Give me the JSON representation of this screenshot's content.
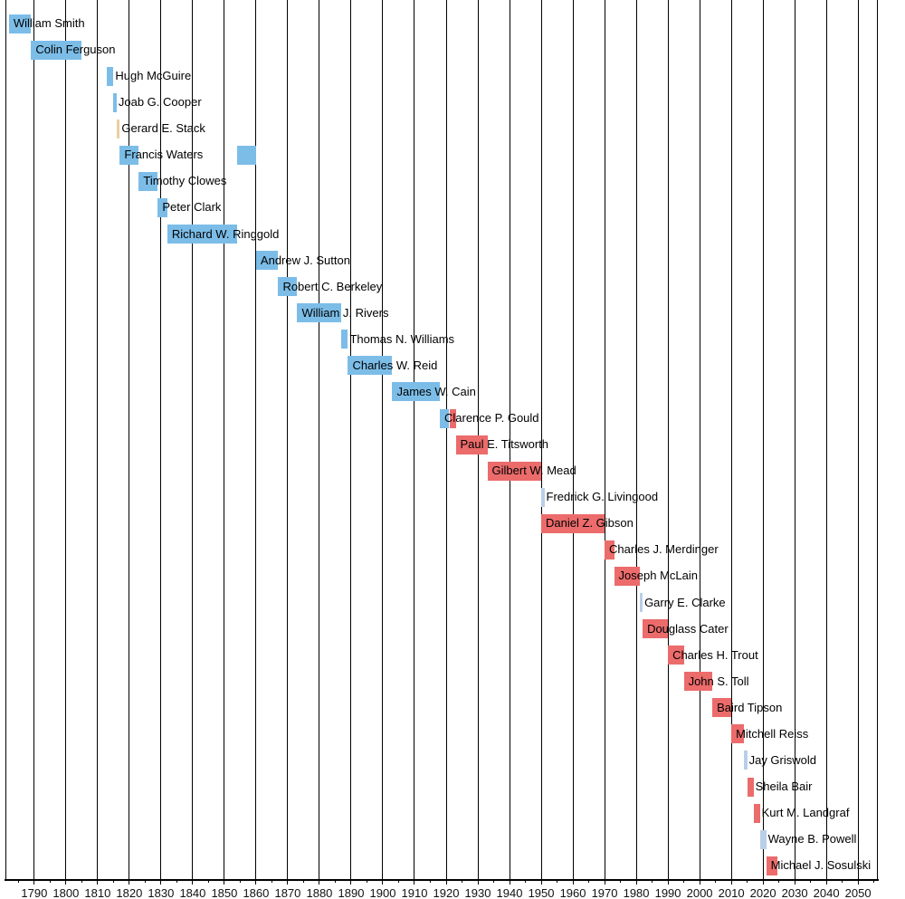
{
  "chart_data": {
    "type": "bar",
    "subtype": "timeline-gantt",
    "title": "",
    "xlabel": "",
    "ylabel": "",
    "grid": "vertical-gridlines-on",
    "legend_position": "none",
    "xlim": [
      1780.9,
      2056.1
    ],
    "x_ticks": [
      1790,
      1800,
      1810,
      1820,
      1830,
      1840,
      1850,
      1860,
      1870,
      1880,
      1890,
      1900,
      1910,
      1920,
      1930,
      1940,
      1950,
      1960,
      1970,
      1980,
      1990,
      2000,
      2010,
      2020,
      2030,
      2040,
      2050
    ],
    "x_minor_tick_interval": 5,
    "palette": {
      "blue": "#7CBDE8",
      "red": "#EC6B6B",
      "pale_blue": "#B9CFE8",
      "tan": "#EBCFA0"
    },
    "rows": [
      {
        "name": "William Smith",
        "segments": [
          {
            "start": 1782,
            "end": 1789,
            "color": "blue"
          }
        ]
      },
      {
        "name": "Colin Ferguson",
        "segments": [
          {
            "start": 1789,
            "end": 1805,
            "color": "blue"
          }
        ]
      },
      {
        "name": "Hugh McGuire",
        "segments": [
          {
            "start": 1813,
            "end": 1815,
            "color": "blue"
          }
        ]
      },
      {
        "name": "Joab G. Cooper",
        "segments": [
          {
            "start": 1815,
            "end": 1816,
            "color": "blue"
          }
        ]
      },
      {
        "name": "Gerard E. Stack",
        "segments": [
          {
            "start": 1816,
            "end": 1817,
            "color": "tan"
          }
        ]
      },
      {
        "name": "Francis Waters",
        "segments": [
          {
            "start": 1817,
            "end": 1823,
            "color": "blue"
          },
          {
            "start": 1854,
            "end": 1860,
            "color": "blue"
          }
        ]
      },
      {
        "name": "Timothy Clowes",
        "segments": [
          {
            "start": 1823,
            "end": 1829,
            "color": "blue"
          }
        ]
      },
      {
        "name": "Peter Clark",
        "segments": [
          {
            "start": 1829,
            "end": 1832,
            "color": "blue"
          }
        ]
      },
      {
        "name": "Richard W. Ringgold",
        "segments": [
          {
            "start": 1832,
            "end": 1854,
            "color": "blue"
          }
        ]
      },
      {
        "name": "Andrew J. Sutton",
        "segments": [
          {
            "start": 1860,
            "end": 1867,
            "color": "blue"
          }
        ]
      },
      {
        "name": "Robert C. Berkeley",
        "segments": [
          {
            "start": 1867,
            "end": 1873,
            "color": "blue"
          }
        ]
      },
      {
        "name": "William J. Rivers",
        "segments": [
          {
            "start": 1873,
            "end": 1887,
            "color": "blue"
          }
        ]
      },
      {
        "name": "Thomas N. Williams",
        "segments": [
          {
            "start": 1887,
            "end": 1889,
            "color": "blue"
          }
        ]
      },
      {
        "name": "Charles W. Reid",
        "segments": [
          {
            "start": 1889,
            "end": 1903,
            "color": "blue"
          }
        ]
      },
      {
        "name": "James W. Cain",
        "segments": [
          {
            "start": 1903,
            "end": 1918,
            "color": "blue"
          }
        ]
      },
      {
        "name": "Clarence P. Gould",
        "segments": [
          {
            "start": 1918,
            "end": 1921,
            "color": "blue"
          },
          {
            "start": 1921,
            "end": 1923,
            "color": "red"
          }
        ]
      },
      {
        "name": "Paul E. Titsworth",
        "segments": [
          {
            "start": 1923,
            "end": 1933,
            "color": "red"
          }
        ]
      },
      {
        "name": "Gilbert W. Mead",
        "segments": [
          {
            "start": 1933,
            "end": 1950,
            "color": "red"
          }
        ]
      },
      {
        "name": "Fredrick G. Livingood",
        "segments": [
          {
            "start": 1950,
            "end": 1951,
            "color": "pale_blue"
          }
        ]
      },
      {
        "name": "Daniel Z. Gibson",
        "segments": [
          {
            "start": 1950,
            "end": 1970,
            "color": "red"
          }
        ]
      },
      {
        "name": "Charles J. Merdinger",
        "segments": [
          {
            "start": 1970,
            "end": 1973,
            "color": "red"
          }
        ]
      },
      {
        "name": "Joseph McLain",
        "segments": [
          {
            "start": 1973,
            "end": 1981,
            "color": "red"
          }
        ]
      },
      {
        "name": "Garry E. Clarke",
        "segments": [
          {
            "start": 1981,
            "end": 1982,
            "color": "pale_blue"
          }
        ]
      },
      {
        "name": "Douglass Cater",
        "segments": [
          {
            "start": 1982,
            "end": 1990,
            "color": "red"
          }
        ]
      },
      {
        "name": "Charles H. Trout",
        "segments": [
          {
            "start": 1990,
            "end": 1995,
            "color": "red"
          }
        ]
      },
      {
        "name": "John S. Toll",
        "segments": [
          {
            "start": 1995,
            "end": 2004,
            "color": "red"
          }
        ]
      },
      {
        "name": "Baird Tipson",
        "segments": [
          {
            "start": 2004,
            "end": 2010,
            "color": "red"
          }
        ]
      },
      {
        "name": "Mitchell Reiss",
        "segments": [
          {
            "start": 2010,
            "end": 2014,
            "color": "red"
          }
        ]
      },
      {
        "name": "Jay Griswold",
        "segments": [
          {
            "start": 2014,
            "end": 2015,
            "color": "pale_blue"
          }
        ]
      },
      {
        "name": "Sheila Bair",
        "segments": [
          {
            "start": 2015,
            "end": 2017,
            "color": "red"
          }
        ]
      },
      {
        "name": "Kurt M. Landgraf",
        "segments": [
          {
            "start": 2017,
            "end": 2019,
            "color": "red"
          }
        ]
      },
      {
        "name": "Wayne B. Powell",
        "segments": [
          {
            "start": 2019,
            "end": 2021,
            "color": "pale_blue"
          }
        ]
      },
      {
        "name": "Michael J. Sosulski",
        "segments": [
          {
            "start": 2021,
            "end": 2024.5,
            "color": "red"
          }
        ]
      }
    ]
  }
}
